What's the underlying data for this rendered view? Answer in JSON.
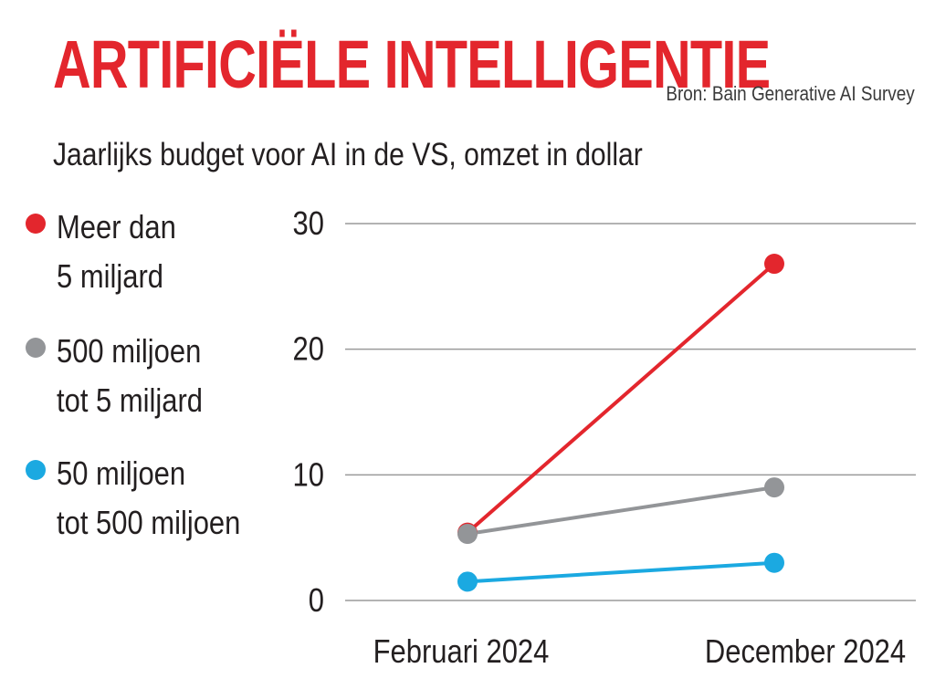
{
  "header": {
    "title": "ARTIFICIËLE INTELLIGENTIE",
    "source": "Bron: Bain Generative AI Survey",
    "subtitle": "Jaarlijks budget voor AI in de VS, omzet in dollar"
  },
  "colors": {
    "red": "#e3262d",
    "gray": "#939598",
    "blue": "#1ba9e1",
    "grid": "#9a9a9a"
  },
  "chart_data": {
    "type": "line",
    "title": "ARTIFICIËLE INTELLIGENTIE",
    "subtitle": "Jaarlijks budget voor AI in de VS, omzet in dollar",
    "categories": [
      "Februari 2024",
      "December 2024"
    ],
    "ylim": [
      0,
      30
    ],
    "yticks": [
      0,
      10,
      20,
      30
    ],
    "grid": true,
    "legend_position": "left",
    "series": [
      {
        "name": "Meer dan\n5 miljard",
        "color": "#e3262d",
        "values": [
          5.4,
          26.8
        ]
      },
      {
        "name": "500 miljoen\ntot 5 miljard",
        "color": "#939598",
        "values": [
          5.3,
          9.0
        ]
      },
      {
        "name": "50 miljoen\ntot 500 miljoen",
        "color": "#1ba9e1",
        "values": [
          1.5,
          3.0
        ]
      }
    ]
  }
}
